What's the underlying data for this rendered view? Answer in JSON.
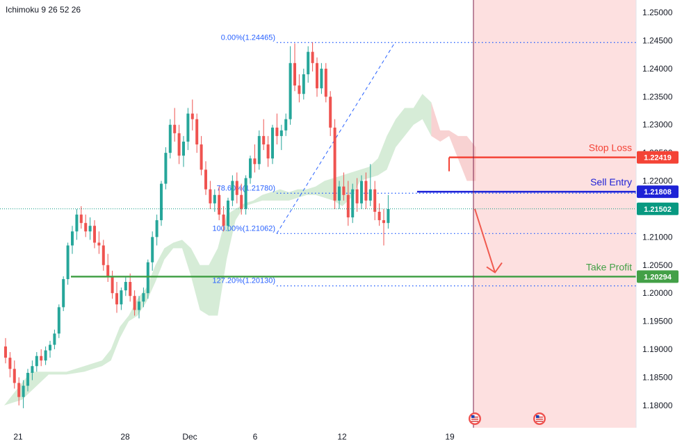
{
  "chart_data": {
    "type": "candlestick",
    "indicator": "Ichimoku 9 26 52 26",
    "x_ticks": [
      "21",
      "28",
      "Dec",
      "6",
      "12",
      "19"
    ],
    "y_ticks": [
      "1.25000",
      "1.24500",
      "1.24000",
      "1.23500",
      "1.23000",
      "1.22500",
      "1.22000",
      "1.21500",
      "1.21000",
      "1.20500",
      "1.20000",
      "1.19500",
      "1.19000",
      "1.18500",
      "1.18000"
    ],
    "ylim": [
      1.178,
      1.251
    ],
    "fib_levels": [
      {
        "label": "0.00%(1.24465)",
        "value": 1.24465
      },
      {
        "label": "78.60%(1.21780)",
        "value": 1.2178
      },
      {
        "label": "100.00%(1.21062)",
        "value": 1.21062
      },
      {
        "label": "127.20%(1.20130)",
        "value": 1.2013
      }
    ],
    "annotations": {
      "stop_loss": {
        "label": "Stop Loss",
        "value": 1.22419,
        "value_label": "1.22419",
        "color": "#f44336"
      },
      "sell_entry": {
        "label": "Sell Entry",
        "value": 1.21808,
        "value_label": "1.21808",
        "color": "#1e22d6"
      },
      "take_profit": {
        "label": "Take Profit",
        "value": 1.20294,
        "value_label": "1.20294",
        "color": "#43a047"
      },
      "current_price": {
        "value": 1.21502,
        "value_label": "1.21502",
        "color": "#089981"
      }
    },
    "colors": {
      "up": "#26a69a",
      "down": "#ef5350",
      "cloud_bull": "#c8e6c9",
      "cloud_bear": "#ffcdd2",
      "fib": "#2962ff",
      "future_zone": "#fde0e0"
    },
    "candles": [
      [
        1.1905,
        1.192,
        1.1875,
        1.1885
      ],
      [
        1.1885,
        1.1895,
        1.185,
        1.1865
      ],
      [
        1.1865,
        1.188,
        1.183,
        1.184
      ],
      [
        1.184,
        1.185,
        1.18,
        1.1815
      ],
      [
        1.1815,
        1.1845,
        1.1795,
        1.1835
      ],
      [
        1.1835,
        1.1865,
        1.1825,
        1.1858
      ],
      [
        1.1858,
        1.188,
        1.1845,
        1.187
      ],
      [
        1.187,
        1.1895,
        1.186,
        1.1888
      ],
      [
        1.1888,
        1.19,
        1.187,
        1.188
      ],
      [
        1.188,
        1.1905,
        1.1872,
        1.1898
      ],
      [
        1.1898,
        1.1915,
        1.1885,
        1.1908
      ],
      [
        1.1908,
        1.1935,
        1.19,
        1.1928
      ],
      [
        1.1928,
        1.198,
        1.192,
        1.1975
      ],
      [
        1.1975,
        1.203,
        1.1968,
        1.2025
      ],
      [
        1.2025,
        1.209,
        1.2015,
        1.2085
      ],
      [
        1.2085,
        1.212,
        1.207,
        1.211
      ],
      [
        1.211,
        1.215,
        1.2095,
        1.214
      ],
      [
        1.214,
        1.2155,
        1.2115,
        1.2125
      ],
      [
        1.2125,
        1.214,
        1.21,
        1.211
      ],
      [
        1.211,
        1.2135,
        1.2095,
        1.212
      ],
      [
        1.212,
        1.213,
        1.208,
        1.209
      ],
      [
        1.209,
        1.211,
        1.207,
        1.2085
      ],
      [
        1.2085,
        1.2095,
        1.204,
        1.205
      ],
      [
        1.205,
        1.207,
        1.202,
        1.203
      ],
      [
        1.203,
        1.204,
        1.199,
        1.2
      ],
      [
        1.2,
        1.202,
        1.1965,
        1.198
      ],
      [
        1.198,
        1.201,
        1.197,
        1.2005
      ],
      [
        1.2005,
        1.203,
        1.1995,
        1.202
      ],
      [
        1.202,
        1.2035,
        1.1985,
        1.1995
      ],
      [
        1.1995,
        1.2005,
        1.196,
        1.197
      ],
      [
        1.197,
        1.1995,
        1.1955,
        1.1985
      ],
      [
        1.1985,
        1.201,
        1.1975,
        1.2
      ],
      [
        1.2,
        1.206,
        1.199,
        1.2055
      ],
      [
        1.2055,
        1.211,
        1.204,
        1.21
      ],
      [
        1.21,
        1.214,
        1.2085,
        1.213
      ],
      [
        1.213,
        1.22,
        1.212,
        1.2195
      ],
      [
        1.2195,
        1.226,
        1.2185,
        1.225
      ],
      [
        1.225,
        1.231,
        1.224,
        1.23
      ],
      [
        1.23,
        1.233,
        1.227,
        1.2285
      ],
      [
        1.2285,
        1.23,
        1.223,
        1.2245
      ],
      [
        1.2245,
        1.228,
        1.2225,
        1.227
      ],
      [
        1.227,
        1.233,
        1.2255,
        1.232
      ],
      [
        1.232,
        1.2345,
        1.229,
        1.231
      ],
      [
        1.231,
        1.232,
        1.225,
        1.2265
      ],
      [
        1.2265,
        1.228,
        1.221,
        1.222
      ],
      [
        1.222,
        1.2235,
        1.2175,
        1.2185
      ],
      [
        1.2185,
        1.22,
        1.215,
        1.216
      ],
      [
        1.216,
        1.2185,
        1.2145,
        1.2175
      ],
      [
        1.2175,
        1.219,
        1.213,
        1.214
      ],
      [
        1.214,
        1.2155,
        1.211,
        1.212
      ],
      [
        1.212,
        1.217,
        1.211,
        1.2165
      ],
      [
        1.2165,
        1.221,
        1.2155,
        1.22
      ],
      [
        1.22,
        1.2215,
        1.216,
        1.2175
      ],
      [
        1.2175,
        1.2195,
        1.214,
        1.215
      ],
      [
        1.215,
        1.221,
        1.214,
        1.2205
      ],
      [
        1.2205,
        1.2245,
        1.2195,
        1.224
      ],
      [
        1.224,
        1.2265,
        1.2215,
        1.223
      ],
      [
        1.223,
        1.229,
        1.222,
        1.228
      ],
      [
        1.228,
        1.231,
        1.2255,
        1.2265
      ],
      [
        1.2265,
        1.228,
        1.2225,
        1.224
      ],
      [
        1.224,
        1.23,
        1.223,
        1.2295
      ],
      [
        1.2295,
        1.232,
        1.2265,
        1.228
      ],
      [
        1.228,
        1.23,
        1.2255,
        1.229
      ],
      [
        1.229,
        1.232,
        1.228,
        1.231
      ],
      [
        1.231,
        1.244,
        1.23,
        1.241
      ],
      [
        1.241,
        1.2445,
        1.236,
        1.237
      ],
      [
        1.237,
        1.239,
        1.234,
        1.2355
      ],
      [
        1.2355,
        1.24,
        1.2345,
        1.239
      ],
      [
        1.239,
        1.244,
        1.2375,
        1.243
      ],
      [
        1.243,
        1.2447,
        1.2395,
        1.241
      ],
      [
        1.241,
        1.242,
        1.235,
        1.2365
      ],
      [
        1.2365,
        1.241,
        1.2355,
        1.24
      ],
      [
        1.24,
        1.241,
        1.234,
        1.235
      ],
      [
        1.235,
        1.236,
        1.228,
        1.2295
      ],
      [
        1.2295,
        1.231,
        1.215,
        1.2165
      ],
      [
        1.2165,
        1.22,
        1.215,
        1.219
      ],
      [
        1.219,
        1.2215,
        1.2165,
        1.2175
      ],
      [
        1.2175,
        1.22,
        1.212,
        1.2135
      ],
      [
        1.2135,
        1.2195,
        1.2125,
        1.2185
      ],
      [
        1.2185,
        1.2205,
        1.2145,
        1.216
      ],
      [
        1.216,
        1.221,
        1.215,
        1.22
      ],
      [
        1.22,
        1.2215,
        1.215,
        1.2165
      ],
      [
        1.2165,
        1.223,
        1.2155,
        1.2185
      ],
      [
        1.2185,
        1.22,
        1.213,
        1.2145
      ],
      [
        1.2145,
        1.216,
        1.212,
        1.213
      ],
      [
        1.213,
        1.215,
        1.2085,
        1.2125
      ],
      [
        1.2125,
        1.2175,
        1.2115,
        1.215
      ]
    ],
    "cloud_points": [
      [
        0,
        1.18,
        1.18
      ],
      [
        2,
        1.1805,
        1.182
      ],
      [
        4,
        1.181,
        1.184
      ],
      [
        6,
        1.1825,
        1.186
      ],
      [
        8,
        1.184,
        1.186
      ],
      [
        10,
        1.1855,
        1.186
      ],
      [
        14,
        1.1855,
        1.186
      ],
      [
        18,
        1.186,
        1.187
      ],
      [
        22,
        1.187,
        1.188
      ],
      [
        24,
        1.188,
        1.19
      ],
      [
        26,
        1.192,
        1.194
      ],
      [
        28,
        1.195,
        1.196
      ],
      [
        30,
        1.196,
        1.199
      ],
      [
        32,
        1.1985,
        1.201
      ],
      [
        34,
        1.202,
        1.205
      ],
      [
        36,
        1.206,
        1.208
      ],
      [
        38,
        1.208,
        1.209
      ],
      [
        40,
        1.208,
        1.2095
      ],
      [
        42,
        1.203,
        1.208
      ],
      [
        44,
        1.197,
        1.205
      ],
      [
        46,
        1.196,
        1.205
      ],
      [
        48,
        1.196,
        1.208
      ],
      [
        50,
        1.206,
        1.214
      ],
      [
        52,
        1.213,
        1.215
      ],
      [
        54,
        1.2155,
        1.216
      ],
      [
        56,
        1.216,
        1.2165
      ],
      [
        58,
        1.2165,
        1.2175
      ],
      [
        60,
        1.2165,
        1.218
      ],
      [
        62,
        1.2165,
        1.2185
      ],
      [
        64,
        1.2165,
        1.218
      ],
      [
        66,
        1.217,
        1.2185
      ],
      [
        68,
        1.2175,
        1.2185
      ],
      [
        70,
        1.2175,
        1.219
      ],
      [
        72,
        1.217,
        1.22
      ],
      [
        74,
        1.2165,
        1.2205
      ],
      [
        76,
        1.2155,
        1.221
      ],
      [
        78,
        1.217,
        1.2215
      ],
      [
        80,
        1.22,
        1.222
      ],
      [
        82,
        1.2205,
        1.2225
      ],
      [
        84,
        1.221,
        1.224
      ],
      [
        86,
        1.222,
        1.228
      ],
      [
        88,
        1.226,
        1.231
      ],
      [
        90,
        1.228,
        1.233
      ],
      [
        92,
        1.23,
        1.233
      ],
      [
        94,
        1.231,
        1.2355
      ],
      [
        96,
        1.228,
        1.234
      ],
      [
        98,
        1.227,
        1.229
      ],
      [
        100,
        1.228,
        1.229
      ],
      [
        102,
        1.224,
        1.228
      ],
      [
        104,
        1.22,
        1.228
      ],
      [
        106,
        1.22,
        1.226
      ]
    ]
  }
}
